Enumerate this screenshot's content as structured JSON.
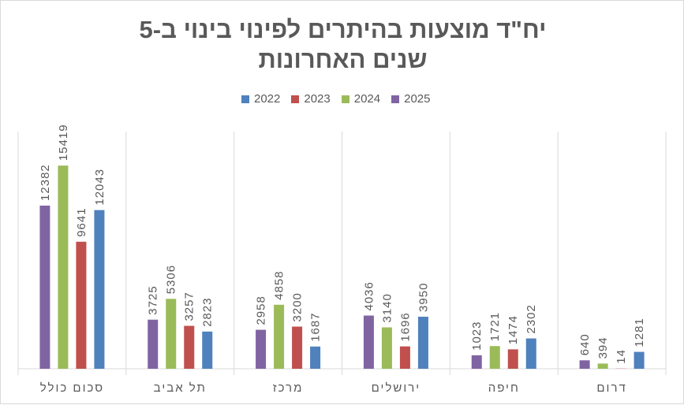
{
  "chart_data": {
    "type": "bar",
    "title_line1": "יח\"ד מוצעות בהיתרים לפינוי בינוי ב-5",
    "title_line2": "שנים האחרונות",
    "direction": "rtl",
    "categories": [
      "דרום",
      "חיפה",
      "ירושלים",
      "מרכז",
      "תל אביב",
      "סכום כולל"
    ],
    "series": [
      {
        "name": "2022",
        "color": "#4f81bd",
        "values": [
          1281,
          2302,
          3950,
          1687,
          2823,
          12043
        ]
      },
      {
        "name": "2023",
        "color": "#c0504d",
        "values": [
          14,
          1474,
          1696,
          3200,
          3257,
          9641
        ]
      },
      {
        "name": "2024",
        "color": "#9bbb59",
        "values": [
          394,
          1721,
          3140,
          4858,
          5306,
          15419
        ]
      },
      {
        "name": "2025",
        "color": "#8064a2",
        "values": [
          640,
          1023,
          4036,
          2958,
          3725,
          12382
        ]
      }
    ],
    "ylim": [
      0,
      18000
    ],
    "grid": false,
    "legend_position": "top"
  }
}
